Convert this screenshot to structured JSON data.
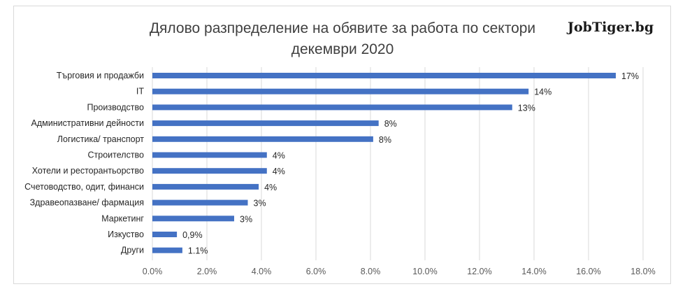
{
  "chart_data": {
    "type": "bar",
    "orientation": "horizontal",
    "title": "Дялово разпределение на обявите за работа по сектори",
    "subtitle": "декември 2020",
    "brand": "JobTiger.bg",
    "categories": [
      "Търговия и продажби",
      "IT",
      "Производство",
      "Административни дейности",
      "Логистика/ транспорт",
      "Строителство",
      "Хотели и ресторантьорство",
      "Счетоводство, одит, финанси",
      "Здравеопазване/ фармация",
      "Маркетинг",
      "Изкуство",
      "Други"
    ],
    "values": [
      17.0,
      13.8,
      13.2,
      8.3,
      8.1,
      4.2,
      4.2,
      3.9,
      3.5,
      3.0,
      0.9,
      1.1
    ],
    "data_labels": [
      "17%",
      "14%",
      "13%",
      "8%",
      "8%",
      "4%",
      "4%",
      "4%",
      "3%",
      "3%",
      "0,9%",
      "1.1%"
    ],
    "xlim": [
      0,
      18
    ],
    "x_ticks": [
      "0.0%",
      "2.0%",
      "4.0%",
      "6.0%",
      "8.0%",
      "10.0%",
      "12.0%",
      "14.0%",
      "16.0%",
      "18.0%"
    ],
    "grid": true,
    "bar_color": "#4472c4",
    "grid_color": "#d9d9d9"
  }
}
